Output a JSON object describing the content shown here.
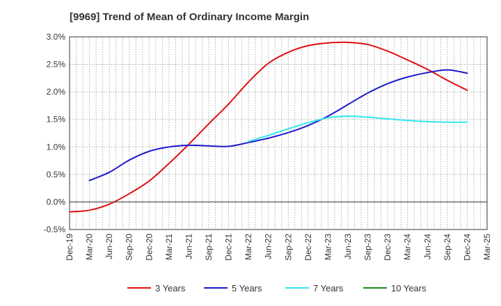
{
  "chart_data": {
    "type": "line",
    "title": "[9969]  Trend of Mean of Ordinary Income Margin",
    "xlabel": "",
    "ylabel": "",
    "x_ticks": [
      "Dec-19",
      "Mar-20",
      "Jun-20",
      "Sep-20",
      "Dec-20",
      "Mar-21",
      "Jun-21",
      "Sep-21",
      "Dec-21",
      "Mar-22",
      "Jun-22",
      "Sep-22",
      "Dec-22",
      "Mar-23",
      "Jun-23",
      "Sep-23",
      "Dec-23",
      "Mar-24",
      "Jun-24",
      "Sep-24",
      "Dec-24",
      "Mar-25"
    ],
    "y_ticks": [
      "-0.5%",
      "0.0%",
      "0.5%",
      "1.0%",
      "1.5%",
      "2.0%",
      "2.5%",
      "3.0%"
    ],
    "ylim": [
      -0.5,
      3.0
    ],
    "grid": true,
    "legend_position": "bottom",
    "series": [
      {
        "name": "3 Years",
        "color": "#dd1111",
        "x": [
          "Dec-19",
          "Mar-20",
          "Jun-20",
          "Sep-20",
          "Dec-20",
          "Mar-21",
          "Jun-21",
          "Sep-21",
          "Dec-21",
          "Mar-22",
          "Jun-22",
          "Sep-22",
          "Dec-22",
          "Mar-23",
          "Jun-23",
          "Sep-23",
          "Dec-23",
          "Mar-24",
          "Jun-24",
          "Sep-24",
          "Dec-24"
        ],
        "values": [
          -0.18,
          -0.15,
          -0.04,
          0.15,
          0.38,
          0.7,
          1.05,
          1.42,
          1.78,
          2.18,
          2.52,
          2.72,
          2.84,
          2.89,
          2.9,
          2.86,
          2.74,
          2.58,
          2.41,
          2.21,
          2.03
        ]
      },
      {
        "name": "5 Years",
        "color": "#1a1acc",
        "x": [
          "Mar-20",
          "Jun-20",
          "Sep-20",
          "Dec-20",
          "Mar-21",
          "Jun-21",
          "Sep-21",
          "Dec-21",
          "Mar-22",
          "Jun-22",
          "Sep-22",
          "Dec-22",
          "Mar-23",
          "Jun-23",
          "Sep-23",
          "Dec-23",
          "Mar-24",
          "Jun-24",
          "Sep-24",
          "Dec-24"
        ],
        "values": [
          0.39,
          0.54,
          0.76,
          0.92,
          1.0,
          1.03,
          1.02,
          1.01,
          1.08,
          1.16,
          1.26,
          1.39,
          1.56,
          1.77,
          1.98,
          2.15,
          2.27,
          2.35,
          2.4,
          2.34
        ]
      },
      {
        "name": "7 Years",
        "color": "#33e5ee",
        "x": [
          "Mar-22",
          "Jun-22",
          "Sep-22",
          "Dec-22",
          "Mar-23",
          "Jun-23",
          "Sep-23",
          "Dec-23",
          "Mar-24",
          "Jun-24",
          "Sep-24",
          "Dec-24"
        ],
        "values": [
          1.1,
          1.21,
          1.33,
          1.44,
          1.53,
          1.56,
          1.54,
          1.51,
          1.48,
          1.46,
          1.45,
          1.45
        ]
      },
      {
        "name": "10 Years",
        "color": "#1a8a1a",
        "x": [],
        "values": []
      }
    ]
  }
}
